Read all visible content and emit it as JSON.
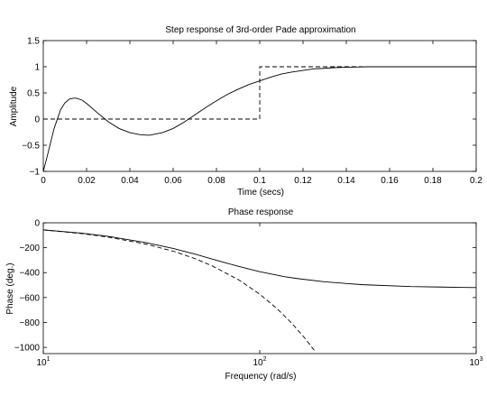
{
  "figure": {
    "background": "#ffffff",
    "line_color": "#000000"
  },
  "chart_data": [
    {
      "type": "line",
      "title": "Step response of 3rd-order Pade approximation",
      "xlabel": "Time (secs)",
      "ylabel": "Amplitude",
      "xlim": [
        0,
        0.2
      ],
      "ylim": [
        -1,
        1.5
      ],
      "xticks": [
        0,
        0.02,
        0.04,
        0.06,
        0.08,
        0.1,
        0.12,
        0.14,
        0.16,
        0.18,
        0.2
      ],
      "xticklabels": [
        "0",
        "0.02",
        "0.04",
        "0.06",
        "0.08",
        "0.1",
        "0.12",
        "0.14",
        "0.16",
        "0.18",
        "0.2"
      ],
      "yticks": [
        -1,
        -0.5,
        0,
        0.5,
        1,
        1.5
      ],
      "yticklabels": [
        "−1",
        "−0.5",
        "0",
        "0.5",
        "1",
        "1.5"
      ],
      "grid": false,
      "series": [
        {
          "style": "solid",
          "x": [
            0,
            0.002,
            0.005,
            0.008,
            0.01,
            0.012,
            0.014,
            0.015,
            0.016,
            0.018,
            0.02,
            0.025,
            0.03,
            0.035,
            0.04,
            0.045,
            0.049,
            0.055,
            0.06,
            0.065,
            0.07,
            0.075,
            0.08,
            0.085,
            0.09,
            0.095,
            0.1,
            0.105,
            0.11,
            0.115,
            0.12,
            0.125,
            0.13,
            0.135,
            0.14,
            0.145,
            0.15,
            0.16,
            0.17,
            0.18,
            0.19,
            0.2
          ],
          "y": [
            -1,
            -0.68,
            -0.18,
            0.18,
            0.31,
            0.38,
            0.4,
            0.4,
            0.39,
            0.36,
            0.3,
            0.12,
            -0.05,
            -0.18,
            -0.26,
            -0.3,
            -0.31,
            -0.26,
            -0.18,
            -0.06,
            0.08,
            0.22,
            0.35,
            0.47,
            0.57,
            0.66,
            0.73,
            0.8,
            0.86,
            0.9,
            0.93,
            0.96,
            0.97,
            0.985,
            0.99,
            0.995,
            1.0,
            1.0,
            1.0,
            1.0,
            1.0,
            1.0
          ]
        },
        {
          "style": "dashed",
          "x": [
            0,
            0.1,
            0.1,
            0.2
          ],
          "y": [
            0,
            0,
            1,
            1
          ]
        }
      ]
    },
    {
      "type": "line",
      "title": "Phase response",
      "xlabel": "Frequency (rad/s)",
      "ylabel": "Phase (deg.)",
      "xscale": "log",
      "xlim": [
        10,
        1000
      ],
      "ylim": [
        -1050,
        0
      ],
      "xticks": [
        10,
        100,
        1000
      ],
      "xticklabels": [
        {
          "base": "10",
          "exp": "1"
        },
        {
          "base": "10",
          "exp": "2"
        },
        {
          "base": "10",
          "exp": "3"
        }
      ],
      "yticks": [
        0,
        -200,
        -400,
        -600,
        -800,
        -1000
      ],
      "yticklabels": [
        "0",
        "−200",
        "−400",
        "−600",
        "−800",
        "−1000"
      ],
      "grid": false,
      "series": [
        {
          "style": "solid",
          "x": [
            10,
            15,
            20,
            30,
            40,
            50,
            60,
            70,
            80,
            100,
            130,
            150,
            200,
            300,
            500,
            700,
            1000
          ],
          "y": [
            -57,
            -83,
            -109,
            -160,
            -207,
            -250,
            -290,
            -323,
            -350,
            -392,
            -432,
            -448,
            -474,
            -497,
            -512,
            -516,
            -520
          ]
        },
        {
          "style": "dashed",
          "x": [
            10,
            15,
            20,
            30,
            40,
            50,
            60,
            80,
            100,
            120,
            140,
            160,
            180
          ],
          "y": [
            -57,
            -86,
            -115,
            -172,
            -229,
            -286,
            -344,
            -458,
            -573,
            -688,
            -802,
            -917,
            -1031
          ]
        }
      ]
    }
  ]
}
